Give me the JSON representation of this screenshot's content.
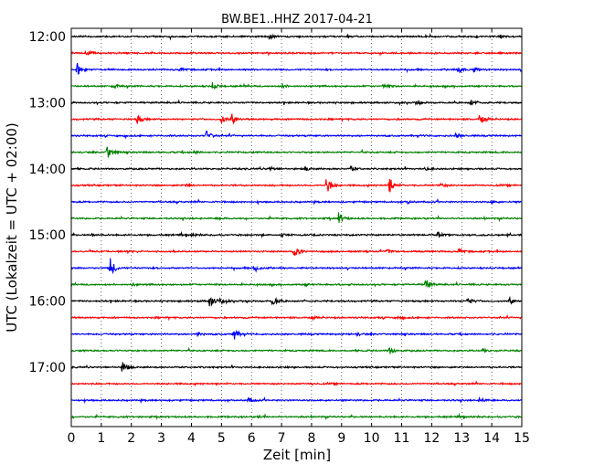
{
  "chart_data": {
    "type": "line",
    "title": "BW.BE1..HHZ 2017-04-21",
    "xlabel": "Zeit  [min]",
    "ylabel": "UTC (Lokalzeit = UTC + 02:00)",
    "xlim": [
      0,
      15
    ],
    "x_ticks": [
      "0",
      "1",
      "2",
      "3",
      "4",
      "5",
      "6",
      "7",
      "8",
      "9",
      "10",
      "11",
      "12",
      "13",
      "14",
      "15"
    ],
    "y_ticks": [
      {
        "label": "12:00",
        "trace": 0
      },
      {
        "label": "13:00",
        "trace": 4
      },
      {
        "label": "14:00",
        "trace": 8
      },
      {
        "label": "15:00",
        "trace": 12
      },
      {
        "label": "16:00",
        "trace": 16
      },
      {
        "label": "17:00",
        "trace": 20
      }
    ],
    "grid": "vertical dotted",
    "trace_interval_min": 15,
    "color_cycle": [
      "#000000",
      "#ff0000",
      "#0000ff",
      "#008000"
    ],
    "traces": [
      {
        "start": "12:00",
        "events": [
          [
            6.6,
            0.4
          ],
          [
            14.3,
            0.25
          ]
        ]
      },
      {
        "start": "12:15",
        "events": [
          [
            0.5,
            0.6
          ]
        ]
      },
      {
        "start": "12:30",
        "events": [
          [
            0.2,
            0.9
          ],
          [
            3.6,
            0.2
          ],
          [
            12.9,
            0.5
          ],
          [
            13.4,
            0.4
          ]
        ]
      },
      {
        "start": "12:45",
        "events": [
          [
            1.4,
            0.4
          ],
          [
            4.7,
            0.5
          ],
          [
            7.0,
            0.3
          ],
          [
            10.4,
            0.4
          ]
        ]
      },
      {
        "start": "13:00",
        "events": [
          [
            11.5,
            0.3
          ],
          [
            13.3,
            0.5
          ]
        ]
      },
      {
        "start": "13:15",
        "events": [
          [
            2.2,
            0.7
          ],
          [
            5.0,
            0.6
          ],
          [
            5.35,
            1.0
          ],
          [
            13.6,
            0.8
          ]
        ]
      },
      {
        "start": "13:30",
        "events": [
          [
            4.5,
            0.8
          ],
          [
            12.8,
            0.4
          ]
        ]
      },
      {
        "start": "13:45",
        "events": [
          [
            1.2,
            1.3
          ],
          [
            4.1,
            0.2
          ]
        ]
      },
      {
        "start": "14:00",
        "events": [
          [
            6.6,
            0.4
          ],
          [
            7.8,
            0.3
          ],
          [
            9.3,
            0.4
          ],
          [
            11.8,
            0.2
          ]
        ]
      },
      {
        "start": "14:15",
        "events": [
          [
            3.8,
            0.3
          ],
          [
            8.5,
            1.4
          ],
          [
            10.6,
            1.2
          ],
          [
            12.3,
            0.3
          ]
        ]
      },
      {
        "start": "14:30",
        "events": [
          [
            11.2,
            0.2
          ],
          [
            14.0,
            0.2
          ]
        ]
      },
      {
        "start": "14:45",
        "events": [
          [
            4.9,
            0.2
          ],
          [
            8.9,
            0.9
          ]
        ]
      },
      {
        "start": "15:00",
        "events": [
          [
            0.7,
            0.2
          ],
          [
            4.0,
            0.2
          ],
          [
            7.0,
            0.2
          ],
          [
            12.2,
            0.4
          ]
        ]
      },
      {
        "start": "15:15",
        "events": [
          [
            1.9,
            0.3
          ],
          [
            7.4,
            1.0
          ],
          [
            10.5,
            0.4
          ],
          [
            12.9,
            0.3
          ]
        ]
      },
      {
        "start": "15:30",
        "events": [
          [
            1.3,
            1.5
          ],
          [
            6.1,
            0.6
          ]
        ]
      },
      {
        "start": "15:45",
        "events": [
          [
            2.0,
            0.2
          ],
          [
            7.8,
            0.2
          ],
          [
            11.8,
            0.8
          ]
        ]
      },
      {
        "start": "16:00",
        "events": [
          [
            4.6,
            1.0
          ],
          [
            4.9,
            0.6
          ],
          [
            6.7,
            0.8
          ],
          [
            13.2,
            0.6
          ],
          [
            14.6,
            0.6
          ]
        ]
      },
      {
        "start": "16:15",
        "events": [
          [
            8.0,
            0.2
          ],
          [
            10.9,
            0.2
          ]
        ]
      },
      {
        "start": "16:30",
        "events": [
          [
            5.4,
            1.0
          ],
          [
            4.2,
            0.3
          ],
          [
            9.5,
            0.2
          ]
        ]
      },
      {
        "start": "16:45",
        "events": [
          [
            10.6,
            0.6
          ],
          [
            13.7,
            0.3
          ]
        ]
      },
      {
        "start": "17:00",
        "events": [
          [
            1.7,
            0.9
          ]
        ]
      },
      {
        "start": "17:15",
        "events": [
          [
            8.0,
            0.15
          ]
        ]
      },
      {
        "start": "17:30",
        "events": [
          [
            5.9,
            0.4
          ],
          [
            13.6,
            0.4
          ]
        ]
      },
      {
        "start": "17:45",
        "events": [
          [
            6.2,
            0.15
          ]
        ]
      }
    ]
  }
}
